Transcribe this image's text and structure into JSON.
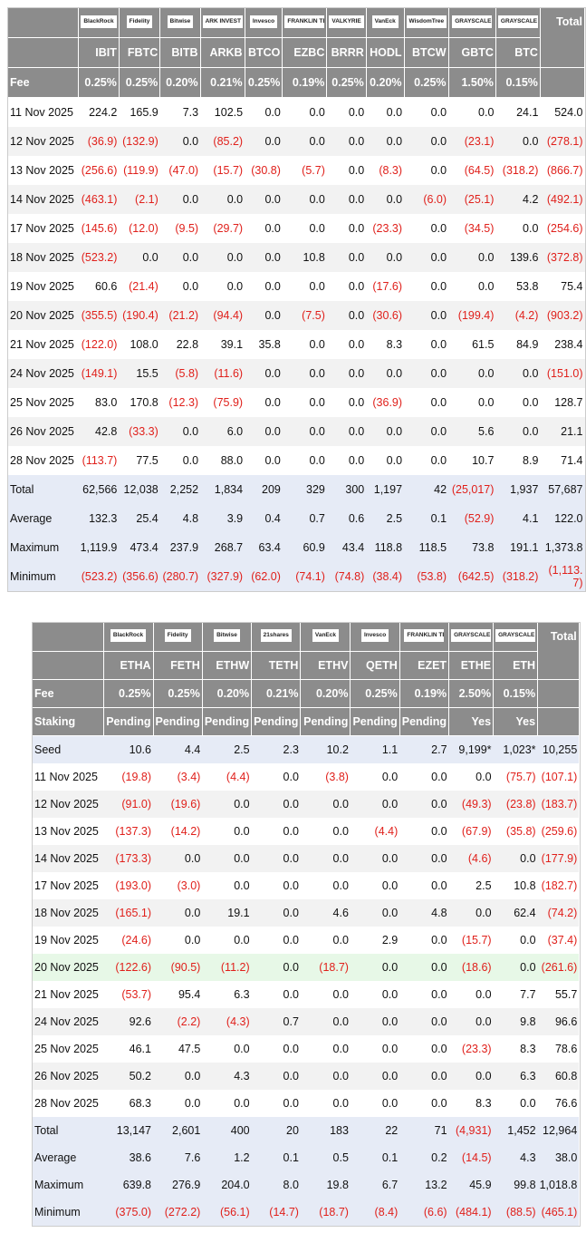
{
  "tables": [
    {
      "logos": [
        "BlackRock",
        "Fidelity",
        "Bitwise",
        "ARK INVEST",
        "Invesco",
        "FRANKLIN TEMPLETON",
        "VALKYRIE",
        "VanEck",
        "WisdomTree",
        "GRAYSCALE",
        "GRAYSCALE"
      ],
      "total_label": "Total",
      "columns": [
        "IBIT",
        "FBTC",
        "BITB",
        "ARKB",
        "BTCO",
        "EZBC",
        "BRRR",
        "HODL",
        "BTCW",
        "GBTC",
        "BTC"
      ],
      "fee_label": "Fee",
      "fee": [
        "0.25%",
        "0.25%",
        "0.20%",
        "0.21%",
        "0.25%",
        "0.19%",
        "0.25%",
        "0.20%",
        "0.25%",
        "1.50%",
        "0.15%"
      ],
      "rows": [
        [
          "11 Nov 2025",
          "224.2",
          "165.9",
          "7.3",
          "102.5",
          "0.0",
          "0.0",
          "0.0",
          "0.0",
          "0.0",
          "0.0",
          "24.1",
          "524.0"
        ],
        [
          "12 Nov 2025",
          "(36.9)",
          "(132.9)",
          "0.0",
          "(85.2)",
          "0.0",
          "0.0",
          "0.0",
          "0.0",
          "0.0",
          "(23.1)",
          "0.0",
          "(278.1)"
        ],
        [
          "13 Nov 2025",
          "(256.6)",
          "(119.9)",
          "(47.0)",
          "(15.7)",
          "(30.8)",
          "(5.7)",
          "0.0",
          "(8.3)",
          "0.0",
          "(64.5)",
          "(318.2)",
          "(866.7)"
        ],
        [
          "14 Nov 2025",
          "(463.1)",
          "(2.1)",
          "0.0",
          "0.0",
          "0.0",
          "0.0",
          "0.0",
          "0.0",
          "(6.0)",
          "(25.1)",
          "4.2",
          "(492.1)"
        ],
        [
          "17 Nov 2025",
          "(145.6)",
          "(12.0)",
          "(9.5)",
          "(29.7)",
          "0.0",
          "0.0",
          "0.0",
          "(23.3)",
          "0.0",
          "(34.5)",
          "0.0",
          "(254.6)"
        ],
        [
          "18 Nov 2025",
          "(523.2)",
          "0.0",
          "0.0",
          "0.0",
          "0.0",
          "10.8",
          "0.0",
          "0.0",
          "0.0",
          "0.0",
          "139.6",
          "(372.8)"
        ],
        [
          "19 Nov 2025",
          "60.6",
          "(21.4)",
          "0.0",
          "0.0",
          "0.0",
          "0.0",
          "0.0",
          "(17.6)",
          "0.0",
          "0.0",
          "53.8",
          "75.4"
        ],
        [
          "20 Nov 2025",
          "(355.5)",
          "(190.4)",
          "(21.2)",
          "(94.4)",
          "0.0",
          "(7.5)",
          "0.0",
          "(30.6)",
          "0.0",
          "(199.4)",
          "(4.2)",
          "(903.2)"
        ],
        [
          "21 Nov 2025",
          "(122.0)",
          "108.0",
          "22.8",
          "39.1",
          "35.8",
          "0.0",
          "0.0",
          "8.3",
          "0.0",
          "61.5",
          "84.9",
          "238.4"
        ],
        [
          "24 Nov 2025",
          "(149.1)",
          "15.5",
          "(5.8)",
          "(11.6)",
          "0.0",
          "0.0",
          "0.0",
          "0.0",
          "0.0",
          "0.0",
          "0.0",
          "(151.0)"
        ],
        [
          "25 Nov 2025",
          "83.0",
          "170.8",
          "(12.3)",
          "(75.9)",
          "0.0",
          "0.0",
          "0.0",
          "(36.9)",
          "0.0",
          "0.0",
          "0.0",
          "128.7"
        ],
        [
          "26 Nov 2025",
          "42.8",
          "(33.3)",
          "0.0",
          "6.0",
          "0.0",
          "0.0",
          "0.0",
          "0.0",
          "0.0",
          "5.6",
          "0.0",
          "21.1"
        ],
        [
          "28 Nov 2025",
          "(113.7)",
          "77.5",
          "0.0",
          "88.0",
          "0.0",
          "0.0",
          "0.0",
          "0.0",
          "0.0",
          "10.7",
          "8.9",
          "71.4"
        ]
      ],
      "summary": [
        [
          "Total",
          "62,566",
          "12,038",
          "2,252",
          "1,834",
          "209",
          "329",
          "300",
          "1,197",
          "42",
          "(25,017)",
          "1,937",
          "57,687"
        ],
        [
          "Average",
          "132.3",
          "25.4",
          "4.8",
          "3.9",
          "0.4",
          "0.7",
          "0.6",
          "2.5",
          "0.1",
          "(52.9)",
          "4.1",
          "122.0"
        ],
        [
          "Maximum",
          "1,119.9",
          "473.4",
          "237.9",
          "268.7",
          "63.4",
          "60.9",
          "43.4",
          "118.8",
          "118.5",
          "73.8",
          "191.1",
          "1,373.8"
        ],
        [
          "Minimum",
          "(523.2)",
          "(356.6)",
          "(280.7)",
          "(327.9)",
          "(62.0)",
          "(74.1)",
          "(74.8)",
          "(38.4)",
          "(53.8)",
          "(642.5)",
          "(318.2)",
          "(1,113.7)"
        ]
      ]
    },
    {
      "logos": [
        "BlackRock",
        "Fidelity",
        "Bitwise",
        "21shares",
        "VanEck",
        "Invesco",
        "FRANKLIN TEMPLETON",
        "GRAYSCALE",
        "GRAYSCALE"
      ],
      "total_label": "Total",
      "columns": [
        "ETHA",
        "FETH",
        "ETHW",
        "TETH",
        "ETHV",
        "QETH",
        "EZET",
        "ETHE",
        "ETH"
      ],
      "fee_label": "Fee",
      "fee": [
        "0.25%",
        "0.25%",
        "0.20%",
        "0.21%",
        "0.20%",
        "0.25%",
        "0.19%",
        "2.50%",
        "0.15%"
      ],
      "staking_label": "Staking",
      "staking": [
        "Pending",
        "Pending",
        "Pending",
        "Pending",
        "Pending",
        "Pending",
        "Pending",
        "Yes",
        "Yes"
      ],
      "seed": [
        "Seed",
        "10.6",
        "4.4",
        "2.5",
        "2.3",
        "10.2",
        "1.1",
        "2.7",
        "9,199*",
        "1,023*",
        "10,255"
      ],
      "rows": [
        [
          "11 Nov 2025",
          "(19.8)",
          "(3.4)",
          "(4.4)",
          "0.0",
          "(3.8)",
          "0.0",
          "0.0",
          "0.0",
          "(75.7)",
          "(107.1)"
        ],
        [
          "12 Nov 2025",
          "(91.0)",
          "(19.6)",
          "0.0",
          "0.0",
          "0.0",
          "0.0",
          "0.0",
          "(49.3)",
          "(23.8)",
          "(183.7)"
        ],
        [
          "13 Nov 2025",
          "(137.3)",
          "(14.2)",
          "0.0",
          "0.0",
          "0.0",
          "(4.4)",
          "0.0",
          "(67.9)",
          "(35.8)",
          "(259.6)"
        ],
        [
          "14 Nov 2025",
          "(173.3)",
          "0.0",
          "0.0",
          "0.0",
          "0.0",
          "0.0",
          "0.0",
          "(4.6)",
          "0.0",
          "(177.9)"
        ],
        [
          "17 Nov 2025",
          "(193.0)",
          "(3.0)",
          "0.0",
          "0.0",
          "0.0",
          "0.0",
          "0.0",
          "2.5",
          "10.8",
          "(182.7)"
        ],
        [
          "18 Nov 2025",
          "(165.1)",
          "0.0",
          "19.1",
          "0.0",
          "4.6",
          "0.0",
          "4.8",
          "0.0",
          "62.4",
          "(74.2)"
        ],
        [
          "19 Nov 2025",
          "(24.6)",
          "0.0",
          "0.0",
          "0.0",
          "0.0",
          "2.9",
          "0.0",
          "(15.7)",
          "0.0",
          "(37.4)"
        ],
        [
          "20 Nov 2025",
          "(122.6)",
          "(90.5)",
          "(11.2)",
          "0.0",
          "(18.7)",
          "0.0",
          "0.0",
          "(18.6)",
          "0.0",
          "(261.6)"
        ],
        [
          "21 Nov 2025",
          "(53.7)",
          "95.4",
          "6.3",
          "0.0",
          "0.0",
          "0.0",
          "0.0",
          "0.0",
          "7.7",
          "55.7"
        ],
        [
          "24 Nov 2025",
          "92.6",
          "(2.2)",
          "(4.3)",
          "0.7",
          "0.0",
          "0.0",
          "0.0",
          "0.0",
          "9.8",
          "96.6"
        ],
        [
          "25 Nov 2025",
          "46.1",
          "47.5",
          "0.0",
          "0.0",
          "0.0",
          "0.0",
          "0.0",
          "(23.3)",
          "8.3",
          "78.6"
        ],
        [
          "26 Nov 2025",
          "50.2",
          "0.0",
          "4.3",
          "0.0",
          "0.0",
          "0.0",
          "0.0",
          "0.0",
          "6.3",
          "60.8"
        ],
        [
          "28 Nov 2025",
          "68.3",
          "0.0",
          "0.0",
          "0.0",
          "0.0",
          "0.0",
          "0.0",
          "8.3",
          "0.0",
          "76.6"
        ]
      ],
      "summary": [
        [
          "Total",
          "13,147",
          "2,601",
          "400",
          "20",
          "183",
          "22",
          "71",
          "(4,931)",
          "1,452",
          "12,964"
        ],
        [
          "Average",
          "38.6",
          "7.6",
          "1.2",
          "0.1",
          "0.5",
          "0.1",
          "0.2",
          "(14.5)",
          "4.3",
          "38.0"
        ],
        [
          "Maximum",
          "639.8",
          "276.9",
          "204.0",
          "8.0",
          "19.8",
          "6.7",
          "13.2",
          "45.9",
          "99.8",
          "1,018.8"
        ],
        [
          "Minimum",
          "(375.0)",
          "(272.2)",
          "(56.1)",
          "(14.7)",
          "(18.7)",
          "(8.4)",
          "(6.6)",
          "(484.1)",
          "(88.5)",
          "(465.1)"
        ]
      ]
    }
  ]
}
